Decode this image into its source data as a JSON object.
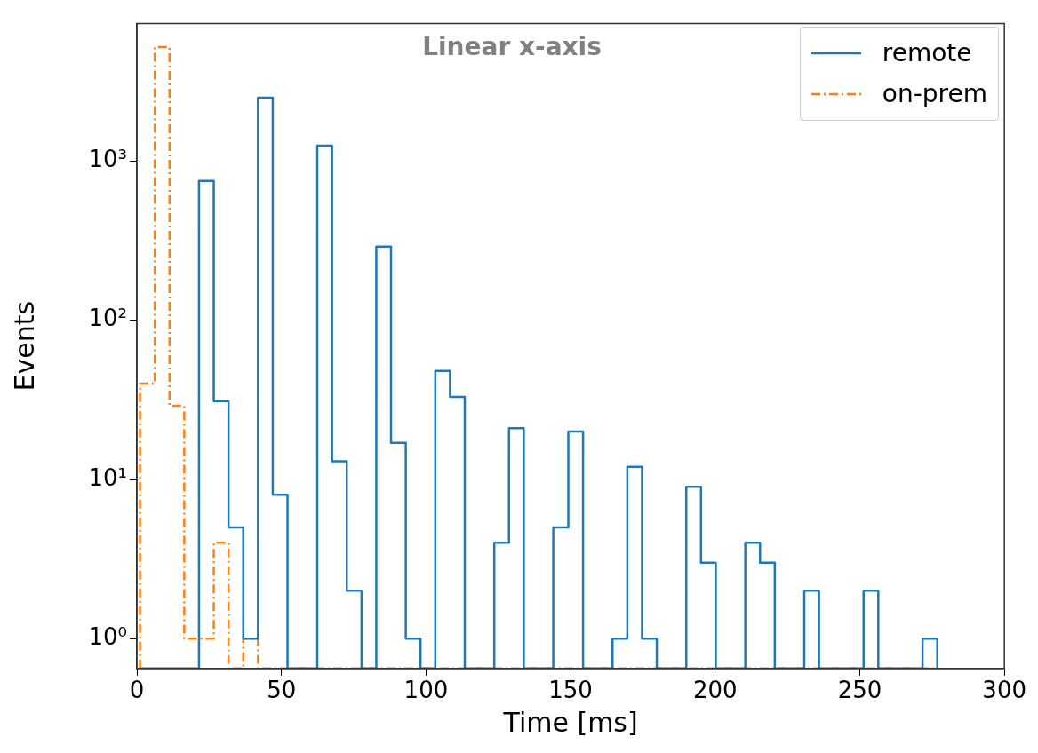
{
  "chart_data": {
    "type": "histogram",
    "title": "Linear x-axis",
    "xlabel": "Time [ms]",
    "ylabel": "Events",
    "bins": [
      1.1,
      6.2,
      11.3,
      16.4,
      21.5,
      26.6,
      31.7,
      36.8,
      41.9,
      47.0,
      52.1,
      57.2,
      62.4,
      67.5,
      72.6,
      77.7,
      82.8,
      87.9,
      93.0,
      98.1,
      103.2,
      108.3,
      113.4,
      118.5,
      123.6,
      128.7,
      133.8,
      138.9,
      144.0,
      149.2,
      154.3,
      159.4,
      164.5,
      169.6,
      174.7,
      179.8,
      184.9,
      190.0,
      195.1,
      200.2,
      205.3,
      210.4,
      215.5,
      220.6,
      225.7,
      230.8,
      235.9,
      241.0,
      246.1,
      251.3,
      256.4,
      261.5,
      266.6,
      271.7,
      276.8
    ],
    "series": [
      {
        "name": "remote",
        "color": "#1f77b4",
        "line_style": "solid",
        "values": [
          null,
          null,
          null,
          null,
          750,
          31,
          5,
          1,
          2500,
          8,
          null,
          null,
          1250,
          13,
          2,
          null,
          290,
          17,
          1,
          null,
          48,
          33,
          null,
          null,
          4,
          21,
          null,
          null,
          5,
          20,
          null,
          null,
          1,
          12,
          1,
          null,
          null,
          9,
          3,
          null,
          null,
          4,
          3,
          null,
          null,
          2,
          null,
          null,
          null,
          2,
          null,
          null,
          null,
          1
        ]
      },
      {
        "name": "on-prem",
        "color": "#ff7f0e",
        "line_style": "dashed",
        "values": [
          40,
          5200,
          29,
          1,
          1,
          4,
          null,
          1,
          null,
          null,
          null,
          null,
          null,
          null,
          null,
          null,
          null,
          null,
          null,
          null,
          null,
          null,
          null,
          null,
          null,
          null,
          null,
          null,
          null,
          null,
          null,
          null,
          null,
          null,
          null,
          null,
          null,
          null,
          null,
          null,
          null,
          null,
          null,
          null,
          null,
          null,
          null,
          null,
          null,
          null,
          null,
          null,
          null,
          null
        ]
      }
    ],
    "xlim": [
      0,
      300
    ],
    "xticks": [
      0,
      50,
      100,
      150,
      200,
      250,
      300
    ],
    "ylim": [
      0.65,
      7300
    ],
    "yticks": [
      {
        "value": 1,
        "label": "10⁰"
      },
      {
        "value": 10,
        "label": "10¹"
      },
      {
        "value": 100,
        "label": "10²"
      },
      {
        "value": 1000,
        "label": "10³"
      }
    ],
    "log": "y",
    "grid": false,
    "legend": "top right"
  }
}
